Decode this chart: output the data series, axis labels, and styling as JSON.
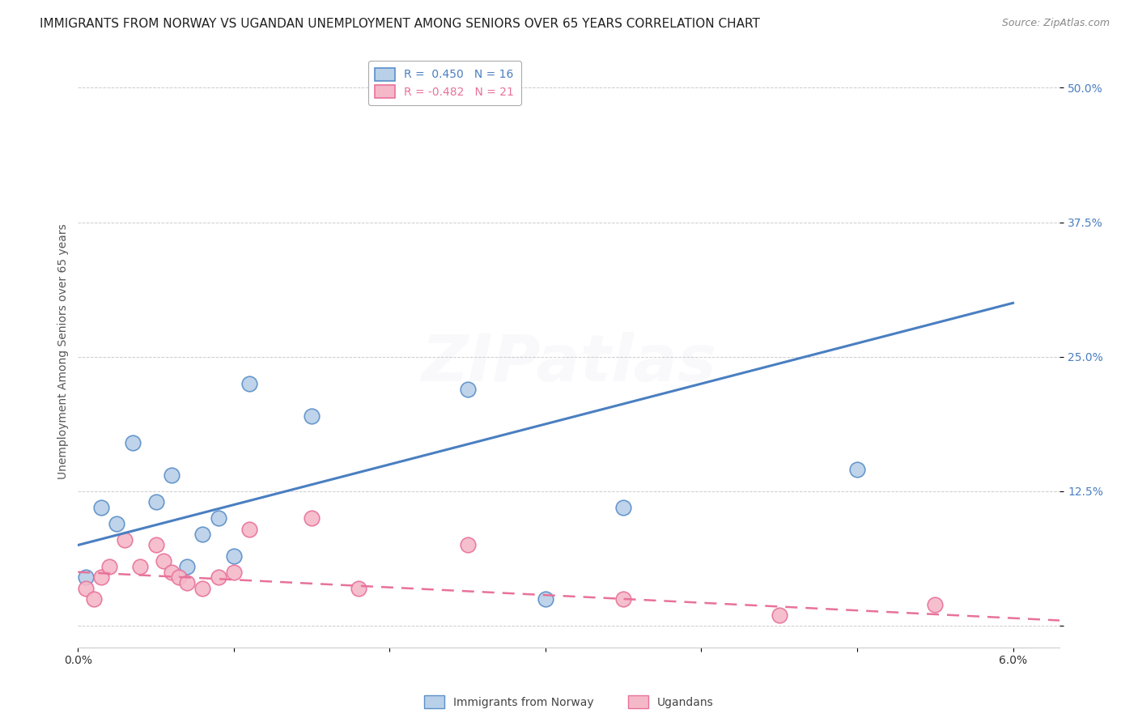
{
  "title": "IMMIGRANTS FROM NORWAY VS UGANDAN UNEMPLOYMENT AMONG SENIORS OVER 65 YEARS CORRELATION CHART",
  "source": "Source: ZipAtlas.com",
  "ylabel": "Unemployment Among Seniors over 65 years",
  "xlim": [
    0.0,
    6.3
  ],
  "ylim": [
    -2.0,
    53.0
  ],
  "yticks": [
    0.0,
    12.5,
    25.0,
    37.5,
    50.0
  ],
  "ytick_labels": [
    "",
    "12.5%",
    "25.0%",
    "37.5%",
    "50.0%"
  ],
  "xticks": [
    0.0,
    1.0,
    2.0,
    3.0,
    4.0,
    5.0,
    6.0
  ],
  "xtick_labels": [
    "0.0%",
    "",
    "",
    "",
    "",
    "",
    "6.0%"
  ],
  "norway_R": 0.45,
  "norway_N": 16,
  "uganda_R": -0.482,
  "uganda_N": 21,
  "norway_color": "#b8d0e8",
  "uganda_color": "#f5b8c8",
  "norway_edge_color": "#5b8fc9",
  "uganda_edge_color": "#e8729a",
  "norway_line_color": "#4a7fc1",
  "uganda_line_color": "#e8729a",
  "norway_scatter_x": [
    0.05,
    0.15,
    0.25,
    0.35,
    0.5,
    0.6,
    0.7,
    0.8,
    0.9,
    1.0,
    1.1,
    1.5,
    2.5,
    3.0,
    3.5,
    5.0
  ],
  "norway_scatter_y": [
    4.5,
    11.0,
    9.5,
    17.0,
    11.5,
    14.0,
    5.5,
    8.5,
    10.0,
    6.5,
    22.5,
    19.5,
    22.0,
    2.5,
    11.0,
    14.5
  ],
  "uganda_scatter_x": [
    0.05,
    0.1,
    0.15,
    0.2,
    0.3,
    0.4,
    0.5,
    0.55,
    0.6,
    0.65,
    0.7,
    0.8,
    0.9,
    1.0,
    1.1,
    1.5,
    1.8,
    2.5,
    3.5,
    4.5,
    5.5
  ],
  "uganda_scatter_y": [
    3.5,
    2.5,
    4.5,
    5.5,
    8.0,
    5.5,
    7.5,
    6.0,
    5.0,
    4.5,
    4.0,
    3.5,
    4.5,
    5.0,
    9.0,
    10.0,
    3.5,
    7.5,
    2.5,
    1.0,
    2.0
  ],
  "norway_trend_x": [
    0.0,
    6.0
  ],
  "norway_trend_y": [
    7.5,
    30.0
  ],
  "uganda_trend_x": [
    0.0,
    6.3
  ],
  "uganda_trend_y": [
    5.0,
    0.5
  ],
  "watermark": "ZIPatlas",
  "background_color": "#ffffff",
  "title_fontsize": 11,
  "source_fontsize": 9,
  "ylabel_fontsize": 10,
  "tick_fontsize": 10,
  "legend_fontsize": 10,
  "watermark_alpha": 0.07,
  "scatter_size": 180,
  "tick_color": "#4a7fc1"
}
